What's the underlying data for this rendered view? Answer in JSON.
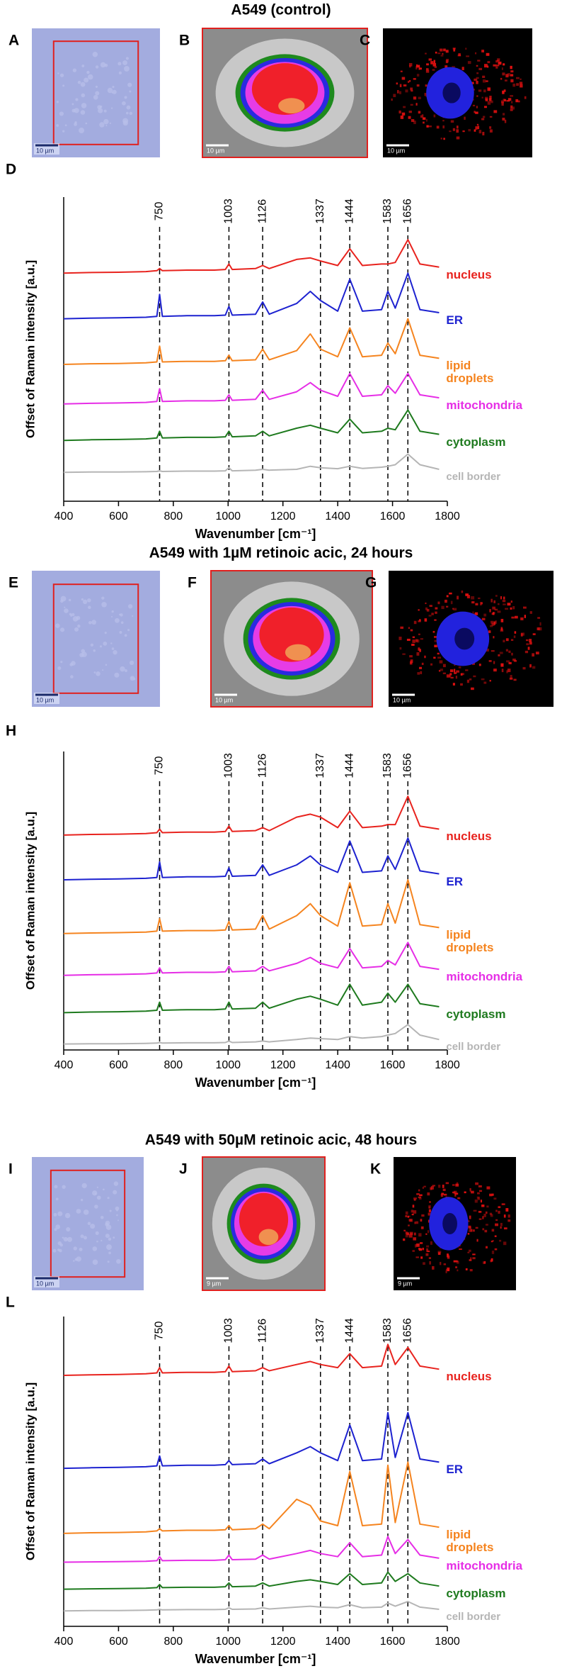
{
  "chart_data": [
    {
      "type": "line",
      "title": "A549 (control)",
      "panel": "D",
      "images": [
        {
          "panel": "A",
          "scale_bar": "10 µm"
        },
        {
          "panel": "B",
          "scale_bar": "10 µm"
        },
        {
          "panel": "C",
          "scale_bar": "10 µm"
        }
      ],
      "xlabel": "Wavenumber [cm⁻¹]",
      "ylabel": "Offset of Raman intensity [a.u.]",
      "xlim": [
        400,
        1800
      ],
      "xticks": [
        400,
        600,
        800,
        1000,
        1200,
        1400,
        1600,
        1800
      ],
      "ylim": [
        0,
        10
      ],
      "peaks": [
        750,
        1003,
        1126,
        1337,
        1444,
        1583,
        1656
      ],
      "x": [
        400,
        500,
        600,
        700,
        740,
        750,
        760,
        850,
        950,
        990,
        1003,
        1015,
        1100,
        1126,
        1150,
        1250,
        1300,
        1337,
        1400,
        1444,
        1490,
        1560,
        1583,
        1610,
        1656,
        1700,
        1770
      ],
      "series": [
        {
          "name": "nucleus",
          "color": "#e8231e",
          "values": [
            7.5,
            7.52,
            7.53,
            7.55,
            7.58,
            7.65,
            7.58,
            7.6,
            7.6,
            7.62,
            7.8,
            7.62,
            7.65,
            7.75,
            7.65,
            7.95,
            8.0,
            7.9,
            7.75,
            8.3,
            7.75,
            7.8,
            7.8,
            7.85,
            8.6,
            7.8,
            7.7
          ]
        },
        {
          "name": "ER",
          "color": "#1d22d0",
          "values": [
            6.0,
            6.02,
            6.03,
            6.05,
            6.08,
            6.8,
            6.08,
            6.1,
            6.1,
            6.12,
            6.4,
            6.12,
            6.15,
            6.55,
            6.15,
            6.5,
            6.9,
            6.6,
            6.25,
            7.3,
            6.25,
            6.3,
            6.9,
            6.35,
            7.5,
            6.3,
            6.2
          ]
        },
        {
          "name": "lipid droplets",
          "color": "#f5841f",
          "values": [
            4.5,
            4.52,
            4.53,
            4.55,
            4.58,
            5.1,
            4.58,
            4.6,
            4.6,
            4.62,
            4.8,
            4.62,
            4.65,
            5.0,
            4.65,
            4.95,
            5.5,
            5.0,
            4.75,
            5.7,
            4.75,
            4.8,
            5.2,
            4.85,
            6.0,
            4.8,
            4.7
          ]
        },
        {
          "name": "mitochondria",
          "color": "#e62ee6",
          "values": [
            3.2,
            3.22,
            3.23,
            3.25,
            3.28,
            3.7,
            3.28,
            3.3,
            3.3,
            3.32,
            3.5,
            3.32,
            3.35,
            3.65,
            3.35,
            3.6,
            3.9,
            3.65,
            3.45,
            4.2,
            3.45,
            3.5,
            3.8,
            3.55,
            4.2,
            3.5,
            3.4
          ]
        },
        {
          "name": "cytoplasm",
          "color": "#1e7a1e",
          "values": [
            2.0,
            2.02,
            2.03,
            2.05,
            2.08,
            2.3,
            2.08,
            2.1,
            2.1,
            2.12,
            2.3,
            2.12,
            2.15,
            2.3,
            2.15,
            2.4,
            2.5,
            2.4,
            2.25,
            2.7,
            2.25,
            2.3,
            2.4,
            2.35,
            3.0,
            2.3,
            2.2
          ]
        },
        {
          "name": "cell border",
          "color": "#b5b5b5",
          "values": [
            0.95,
            0.96,
            0.96,
            0.97,
            0.98,
            1.0,
            0.98,
            0.99,
            0.99,
            1.0,
            1.1,
            1.0,
            1.02,
            1.05,
            1.02,
            1.05,
            1.15,
            1.1,
            1.07,
            1.15,
            1.08,
            1.12,
            1.15,
            1.2,
            1.55,
            1.2,
            1.05
          ]
        }
      ]
    },
    {
      "type": "line",
      "title": "A549 with 1µM retinoic acic, 24 hours",
      "panel": "H",
      "images": [
        {
          "panel": "E",
          "scale_bar": "10 µm"
        },
        {
          "panel": "F",
          "scale_bar": "10 µm"
        },
        {
          "panel": "G",
          "scale_bar": "10 µm"
        }
      ],
      "xlabel": "Wavenumber [cm⁻¹]",
      "ylabel": "Offset of Raman intensity [a.u.]",
      "xlim": [
        400,
        1800
      ],
      "xticks": [
        400,
        600,
        800,
        1000,
        1200,
        1400,
        1600,
        1800
      ],
      "ylim": [
        0,
        10
      ],
      "peaks": [
        750,
        1003,
        1126,
        1337,
        1444,
        1583,
        1656
      ],
      "x": [
        400,
        500,
        600,
        700,
        740,
        750,
        760,
        850,
        950,
        990,
        1003,
        1015,
        1100,
        1126,
        1150,
        1250,
        1300,
        1337,
        1400,
        1444,
        1490,
        1560,
        1583,
        1610,
        1656,
        1700,
        1770
      ],
      "series": [
        {
          "name": "nucleus",
          "color": "#e8231e",
          "values": [
            7.2,
            7.22,
            7.23,
            7.25,
            7.28,
            7.4,
            7.28,
            7.3,
            7.3,
            7.32,
            7.5,
            7.32,
            7.35,
            7.45,
            7.35,
            7.8,
            7.9,
            7.8,
            7.45,
            8.0,
            7.45,
            7.5,
            7.55,
            7.55,
            8.5,
            7.5,
            7.4
          ]
        },
        {
          "name": "ER",
          "color": "#1d22d0",
          "values": [
            5.7,
            5.72,
            5.73,
            5.75,
            5.78,
            6.3,
            5.78,
            5.8,
            5.8,
            5.82,
            6.1,
            5.82,
            5.85,
            6.2,
            5.85,
            6.2,
            6.5,
            6.2,
            5.95,
            7.0,
            5.95,
            6.0,
            6.5,
            6.05,
            7.1,
            6.0,
            5.9
          ]
        },
        {
          "name": "lipid droplets",
          "color": "#f5841f",
          "values": [
            3.9,
            3.92,
            3.93,
            3.95,
            3.98,
            4.4,
            3.98,
            4.0,
            4.0,
            4.02,
            4.3,
            4.02,
            4.05,
            4.5,
            4.05,
            4.5,
            4.9,
            4.5,
            4.15,
            5.6,
            4.15,
            4.2,
            4.9,
            4.25,
            5.7,
            4.2,
            4.1
          ]
        },
        {
          "name": "mitochondria",
          "color": "#e62ee6",
          "values": [
            2.5,
            2.52,
            2.53,
            2.55,
            2.58,
            2.75,
            2.58,
            2.6,
            2.6,
            2.62,
            2.8,
            2.62,
            2.65,
            2.8,
            2.65,
            2.9,
            3.1,
            2.9,
            2.75,
            3.4,
            2.75,
            2.8,
            3.0,
            2.85,
            3.6,
            2.8,
            2.7
          ]
        },
        {
          "name": "cytoplasm",
          "color": "#1e7a1e",
          "values": [
            1.25,
            1.27,
            1.28,
            1.3,
            1.33,
            1.6,
            1.33,
            1.35,
            1.35,
            1.37,
            1.6,
            1.37,
            1.4,
            1.6,
            1.4,
            1.7,
            1.8,
            1.7,
            1.5,
            2.2,
            1.5,
            1.6,
            1.9,
            1.6,
            2.2,
            1.55,
            1.45
          ]
        },
        {
          "name": "cell border",
          "color": "#b5b5b5",
          "values": [
            0.2,
            0.21,
            0.21,
            0.22,
            0.23,
            0.25,
            0.23,
            0.24,
            0.24,
            0.25,
            0.3,
            0.25,
            0.27,
            0.3,
            0.27,
            0.35,
            0.4,
            0.38,
            0.35,
            0.45,
            0.4,
            0.45,
            0.5,
            0.55,
            0.85,
            0.5,
            0.35
          ]
        }
      ]
    },
    {
      "type": "line",
      "title": "A549 with 50µM retinoic acic, 48 hours",
      "panel": "L",
      "images": [
        {
          "panel": "I",
          "scale_bar": "10 µm"
        },
        {
          "panel": "J",
          "scale_bar": "9 µm"
        },
        {
          "panel": "K",
          "scale_bar": "9 µm"
        }
      ],
      "xlabel": "Wavenumber [cm⁻¹]",
      "ylabel": "Offset of Raman intensity [a.u.]",
      "xlim": [
        400,
        1800
      ],
      "xticks": [
        400,
        600,
        800,
        1000,
        1200,
        1400,
        1600,
        1800
      ],
      "ylim": [
        0,
        10
      ],
      "peaks": [
        750,
        1003,
        1126,
        1337,
        1444,
        1583,
        1656
      ],
      "x": [
        400,
        500,
        600,
        700,
        740,
        750,
        760,
        850,
        950,
        990,
        1003,
        1015,
        1100,
        1126,
        1150,
        1250,
        1300,
        1337,
        1400,
        1444,
        1490,
        1560,
        1583,
        1610,
        1656,
        1700,
        1770
      ],
      "series": [
        {
          "name": "nucleus",
          "color": "#e8231e",
          "values": [
            8.1,
            8.12,
            8.13,
            8.15,
            8.18,
            8.35,
            8.18,
            8.2,
            8.2,
            8.22,
            8.4,
            8.22,
            8.25,
            8.35,
            8.25,
            8.45,
            8.55,
            8.45,
            8.35,
            8.8,
            8.35,
            8.4,
            9.1,
            8.45,
            9.0,
            8.4,
            8.3
          ]
        },
        {
          "name": "ER",
          "color": "#1d22d0",
          "values": [
            5.1,
            5.12,
            5.13,
            5.15,
            5.18,
            5.5,
            5.18,
            5.2,
            5.2,
            5.22,
            5.35,
            5.22,
            5.25,
            5.4,
            5.25,
            5.6,
            5.8,
            5.6,
            5.35,
            6.5,
            5.35,
            5.4,
            6.9,
            5.45,
            6.9,
            5.4,
            5.3
          ]
        },
        {
          "name": "lipid droplets",
          "color": "#f5841f",
          "values": [
            3.0,
            3.02,
            3.03,
            3.05,
            3.08,
            3.15,
            3.08,
            3.1,
            3.1,
            3.12,
            3.25,
            3.12,
            3.15,
            3.3,
            3.15,
            4.1,
            3.9,
            3.4,
            3.25,
            5.0,
            3.25,
            3.3,
            5.2,
            3.35,
            5.3,
            3.3,
            3.2
          ]
        },
        {
          "name": "mitochondria",
          "color": "#e62ee6",
          "values": [
            2.07,
            2.08,
            2.09,
            2.1,
            2.12,
            2.25,
            2.12,
            2.13,
            2.13,
            2.15,
            2.3,
            2.15,
            2.17,
            2.3,
            2.17,
            2.35,
            2.45,
            2.35,
            2.25,
            2.7,
            2.25,
            2.3,
            2.9,
            2.35,
            2.8,
            2.3,
            2.2
          ]
        },
        {
          "name": "cytoplasm",
          "color": "#1e7a1e",
          "values": [
            1.2,
            1.21,
            1.22,
            1.23,
            1.25,
            1.35,
            1.25,
            1.26,
            1.26,
            1.28,
            1.4,
            1.28,
            1.3,
            1.4,
            1.3,
            1.45,
            1.5,
            1.45,
            1.35,
            1.7,
            1.35,
            1.4,
            1.75,
            1.45,
            1.7,
            1.4,
            1.3
          ]
        },
        {
          "name": "cell border",
          "color": "#b5b5b5",
          "values": [
            0.5,
            0.51,
            0.51,
            0.52,
            0.53,
            0.55,
            0.53,
            0.54,
            0.54,
            0.55,
            0.6,
            0.55,
            0.56,
            0.6,
            0.56,
            0.62,
            0.65,
            0.62,
            0.6,
            0.7,
            0.6,
            0.62,
            0.75,
            0.65,
            0.8,
            0.62,
            0.55
          ]
        }
      ]
    }
  ]
}
